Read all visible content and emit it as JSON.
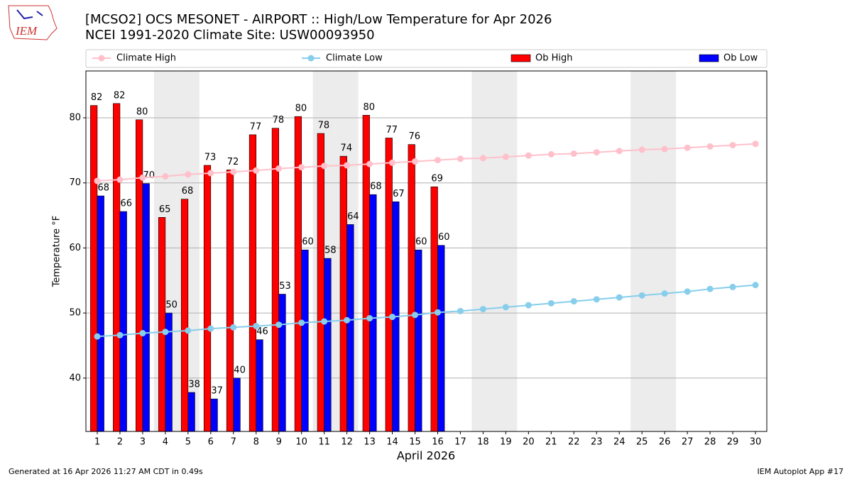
{
  "chart_data": {
    "type": "bar",
    "title": "[MCSO2] OCS MESONET - AIRPORT :: High/Low Temperature for Apr 2026",
    "subtitle": "NCEI 1991-2020 Climate Site: USW00093950",
    "logo_text": "IEM",
    "xlabel": "April 2026",
    "ylabel": "Temperature °F",
    "footer_left": "Generated at 16 Apr 2026 11:27 AM CDT in 0.49s",
    "footer_right": "IEM Autoplot App #17",
    "categories": [
      "1",
      "2",
      "3",
      "4",
      "5",
      "6",
      "7",
      "8",
      "9",
      "10",
      "11",
      "12",
      "13",
      "14",
      "15",
      "16",
      "17",
      "18",
      "19",
      "20",
      "21",
      "22",
      "23",
      "24",
      "25",
      "26",
      "27",
      "28",
      "29",
      "30"
    ],
    "shaded_categories": [
      "4",
      "5",
      "11",
      "12",
      "18",
      "19",
      "25",
      "26"
    ],
    "series": [
      {
        "name": "Climate High",
        "type": "line",
        "color": "#ffc0cb",
        "values": [
          70.3,
          70.5,
          70.8,
          71.0,
          71.3,
          71.5,
          71.7,
          71.9,
          72.2,
          72.4,
          72.6,
          72.7,
          72.9,
          73.1,
          73.3,
          73.5,
          73.7,
          73.8,
          74.0,
          74.2,
          74.4,
          74.5,
          74.7,
          74.9,
          75.1,
          75.2,
          75.4,
          75.6,
          75.8,
          76.0
        ]
      },
      {
        "name": "Climate Low",
        "type": "line",
        "color": "#87ceeb",
        "values": [
          46.4,
          46.6,
          46.9,
          47.1,
          47.3,
          47.6,
          47.8,
          48.0,
          48.2,
          48.5,
          48.7,
          48.9,
          49.2,
          49.4,
          49.7,
          50.1,
          50.3,
          50.6,
          50.9,
          51.2,
          51.5,
          51.8,
          52.1,
          52.4,
          52.7,
          53.0,
          53.3,
          53.7,
          54.0,
          54.3
        ]
      },
      {
        "name": "Ob High",
        "type": "bar",
        "color": "#ff0000",
        "values": [
          81.9,
          82.2,
          79.7,
          64.7,
          67.5,
          72.7,
          72.0,
          77.4,
          78.4,
          80.2,
          77.6,
          74.1,
          80.4,
          76.9,
          75.9,
          69.4,
          null,
          null,
          null,
          null,
          null,
          null,
          null,
          null,
          null,
          null,
          null,
          null,
          null,
          null
        ],
        "value_labels": [
          "82",
          "82",
          "80",
          "65",
          "68",
          "73",
          "72",
          "77",
          "78",
          "80",
          "78",
          "74",
          "80",
          "77",
          "76",
          "69",
          null,
          null,
          null,
          null,
          null,
          null,
          null,
          null,
          null,
          null,
          null,
          null,
          null,
          null
        ]
      },
      {
        "name": "Ob Low",
        "type": "bar",
        "color": "#0000ff",
        "values": [
          68.0,
          65.6,
          69.9,
          50.0,
          37.8,
          36.8,
          40.0,
          45.9,
          52.9,
          59.7,
          58.4,
          63.6,
          68.2,
          67.1,
          59.7,
          60.4,
          null,
          null,
          null,
          null,
          null,
          null,
          null,
          null,
          null,
          null,
          null,
          null,
          null,
          null
        ],
        "value_labels": [
          "68",
          "66",
          "70",
          "50",
          "38",
          "37",
          "40",
          "46",
          "53",
          "60",
          "58",
          "64",
          "68",
          "67",
          "60",
          "60",
          null,
          null,
          null,
          null,
          null,
          null,
          null,
          null,
          null,
          null,
          null,
          null,
          null,
          null
        ]
      }
    ],
    "ylim": [
      31.8,
      87.2
    ],
    "yticks": [
      40,
      50,
      60,
      70,
      80
    ],
    "grid": true,
    "legend": "top"
  }
}
